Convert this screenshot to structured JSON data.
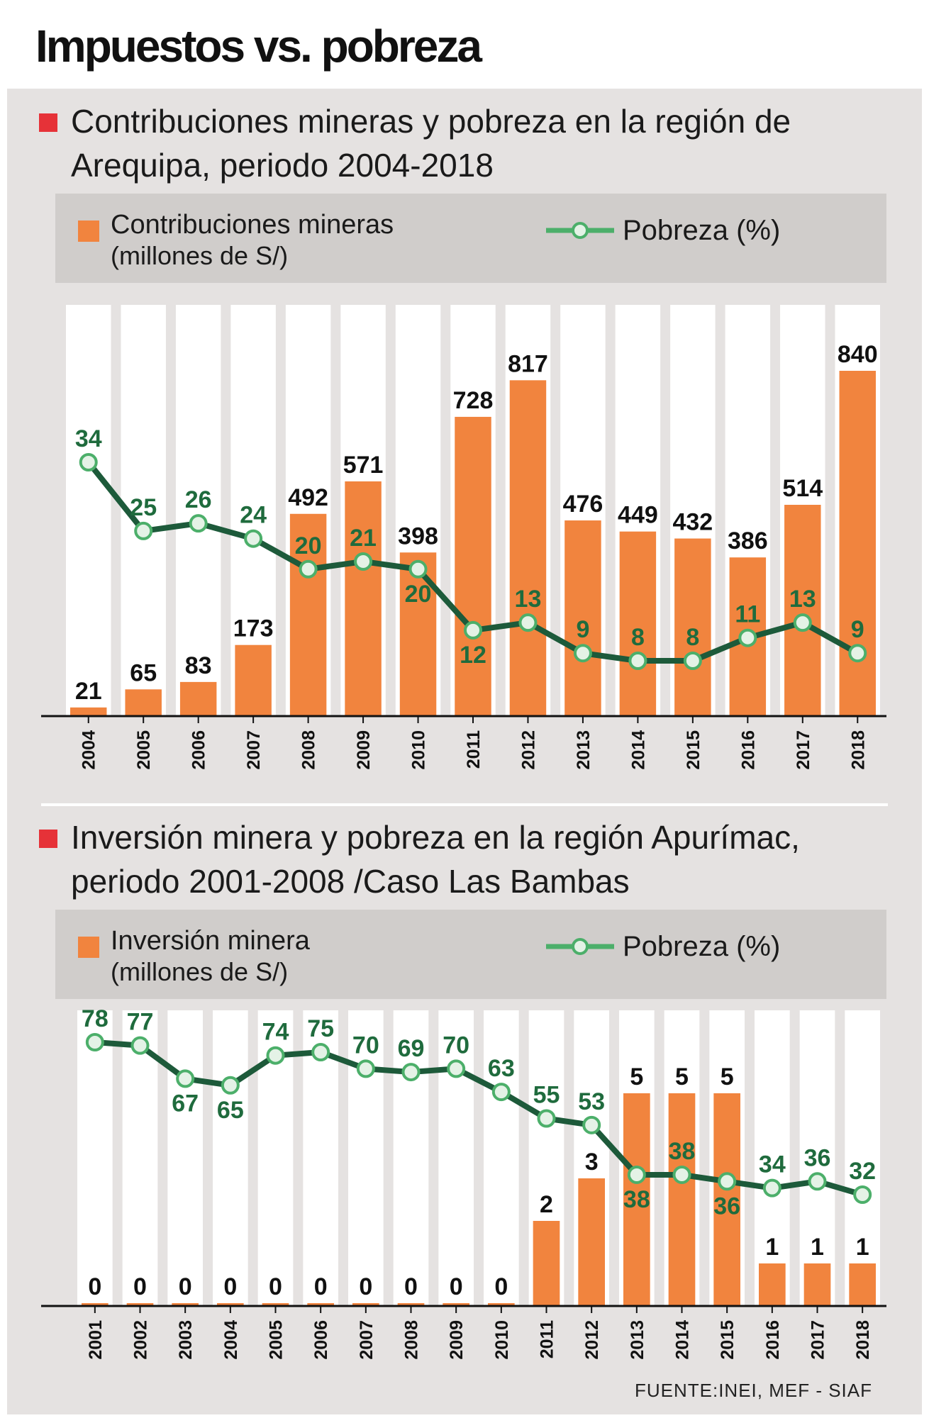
{
  "header": {
    "title": "Impuestos vs. pobreza"
  },
  "colors": {
    "bar": "#f1843e",
    "line": "#1d5a3a",
    "marker_fill": "#e4f2e6",
    "marker_stroke": "#4caf6a",
    "accent": "#e63238"
  },
  "chart_data": [
    {
      "type": "bar",
      "title": "Contribuciones mineras y pobreza en la región de Arequipa, periodo 2004-2018",
      "legend": {
        "bar_label": "Contribuciones mineras",
        "bar_unit": "(millones de S/)",
        "line_label": "Pobreza (%)"
      },
      "categories": [
        "2004",
        "2005",
        "2006",
        "2007",
        "2008",
        "2009",
        "2010",
        "2011",
        "2012",
        "2013",
        "2014",
        "2015",
        "2016",
        "2017",
        "2018"
      ],
      "series": [
        {
          "name": "Contribuciones mineras",
          "type": "bar",
          "values": [
            21,
            65,
            83,
            173,
            492,
            571,
            398,
            728,
            817,
            476,
            449,
            432,
            386,
            514,
            840
          ]
        },
        {
          "name": "Pobreza (%)",
          "type": "line",
          "values": [
            34,
            25,
            26,
            24,
            20,
            21,
            20,
            12,
            13,
            9,
            8,
            8,
            11,
            13,
            9
          ]
        }
      ],
      "xlabel": "",
      "ylabel": ""
    },
    {
      "type": "bar",
      "title": "Inversión minera y pobreza en la región Apurímac, periodo 2001-2008 /Caso Las Bambas",
      "legend": {
        "bar_label": "Inversión minera",
        "bar_unit": "(millones de S/)",
        "line_label": "Pobreza (%)"
      },
      "categories": [
        "2001",
        "2002",
        "2003",
        "2004",
        "2005",
        "2006",
        "2007",
        "2008",
        "2009",
        "2010",
        "2011",
        "2012",
        "2013",
        "2014",
        "2015",
        "2016",
        "2017",
        "2018"
      ],
      "series": [
        {
          "name": "Inversión minera",
          "type": "bar",
          "values": [
            0,
            0,
            0,
            0,
            0,
            0,
            0,
            0,
            0,
            0,
            2,
            3,
            5,
            5,
            5,
            1,
            1,
            1
          ]
        },
        {
          "name": "Pobreza (%)",
          "type": "line",
          "values": [
            78,
            77,
            67,
            65,
            74,
            75,
            70,
            69,
            70,
            63,
            55,
            53,
            38,
            38,
            36,
            34,
            36,
            32
          ]
        }
      ],
      "xlabel": "",
      "ylabel": ""
    }
  ],
  "footer": {
    "source": "FUENTE:INEI, MEF - SIAF"
  }
}
